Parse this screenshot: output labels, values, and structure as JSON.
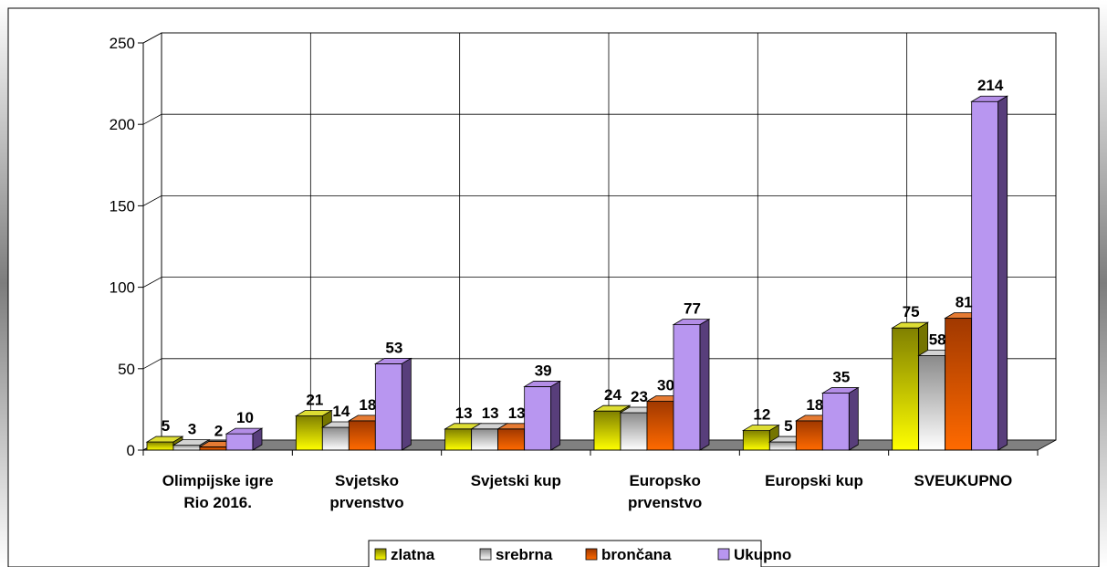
{
  "chart_data": {
    "type": "bar",
    "categories": [
      [
        "Olimpijske igre",
        "Rio 2016."
      ],
      [
        "Svjetsko",
        "prvenstvo"
      ],
      [
        "Svjetski kup"
      ],
      [
        "Europsko",
        "prvenstvo"
      ],
      [
        "Europski kup"
      ],
      [
        "SVEUKUPNO"
      ]
    ],
    "series": [
      {
        "name": "zlatna",
        "values": [
          5,
          21,
          13,
          24,
          12,
          75
        ],
        "color": "#d4d400"
      },
      {
        "name": "srebrna",
        "values": [
          3,
          14,
          13,
          23,
          5,
          58
        ],
        "color": "#c8c8c8"
      },
      {
        "name": "brončana",
        "values": [
          2,
          18,
          13,
          30,
          18,
          81
        ],
        "color": "#e05a00"
      },
      {
        "name": "Ukupno",
        "values": [
          10,
          53,
          39,
          77,
          35,
          214
        ],
        "color": "#a070e0"
      }
    ],
    "y_ticks": [
      "0",
      "50",
      "100",
      "150",
      "200",
      "250"
    ],
    "ylim": [
      0,
      250
    ],
    "grid": true,
    "data_labels": true,
    "legend_position": "bottom"
  }
}
